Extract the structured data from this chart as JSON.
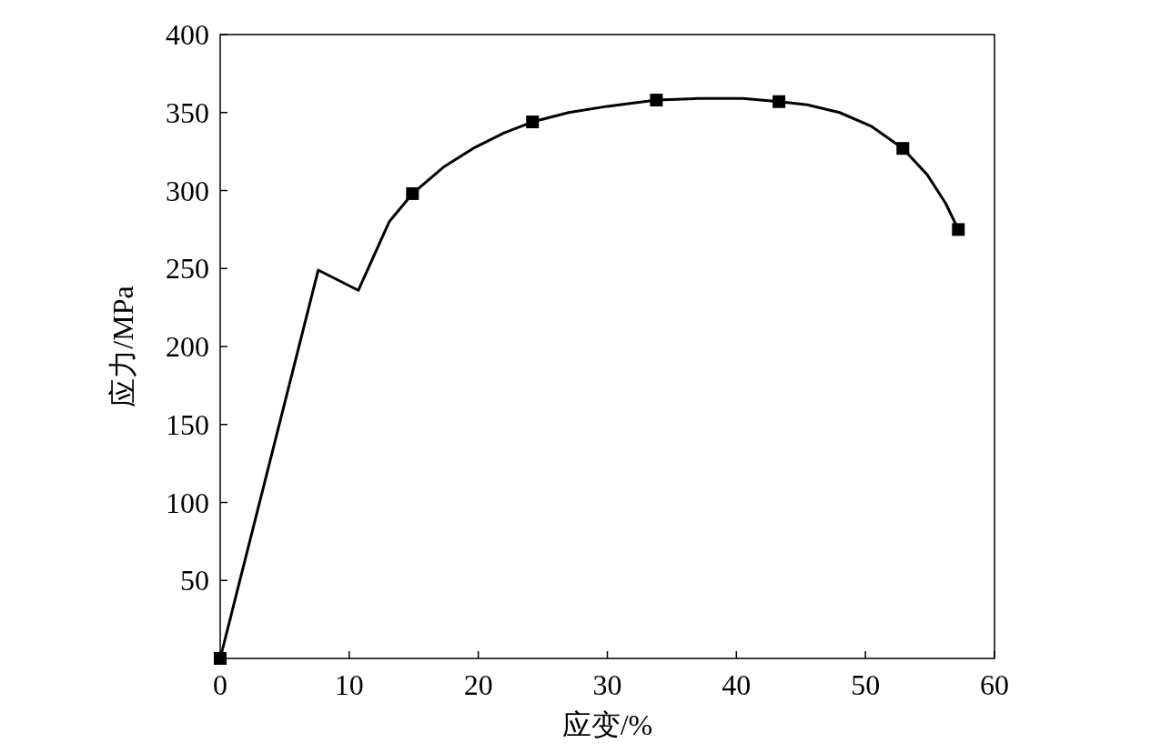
{
  "chart_data": {
    "type": "line",
    "xlabel": "应变/%",
    "ylabel": "应力/MPa",
    "xlim": [
      0,
      60
    ],
    "ylim": [
      0,
      400
    ],
    "xticks": [
      0,
      10,
      20,
      30,
      40,
      50,
      60
    ],
    "yticks": [
      50,
      100,
      150,
      200,
      250,
      300,
      350,
      400
    ],
    "series": [
      {
        "color": "#000000",
        "marker": "none",
        "line_style": "solid",
        "x": [
          0,
          7.6,
          10.7,
          13.1,
          14.9,
          17.3,
          19.6,
          22,
          24.2,
          27,
          30,
          33.8,
          37,
          40.5,
          43.3,
          45.5,
          48,
          50.5,
          52.9,
          54.8,
          56.2,
          57.2
        ],
        "values": [
          0,
          249,
          236,
          280,
          298,
          315,
          327,
          337,
          344,
          350,
          354,
          358,
          359,
          359,
          357,
          355,
          350,
          341,
          327,
          310,
          292,
          275
        ]
      },
      {
        "type": "scatter",
        "color": "#000000",
        "marker": "square",
        "x": [
          0,
          14.9,
          24.2,
          33.8,
          43.3,
          52.9,
          57.2
        ],
        "values": [
          0,
          298,
          344,
          358,
          357,
          327,
          275
        ]
      }
    ]
  }
}
